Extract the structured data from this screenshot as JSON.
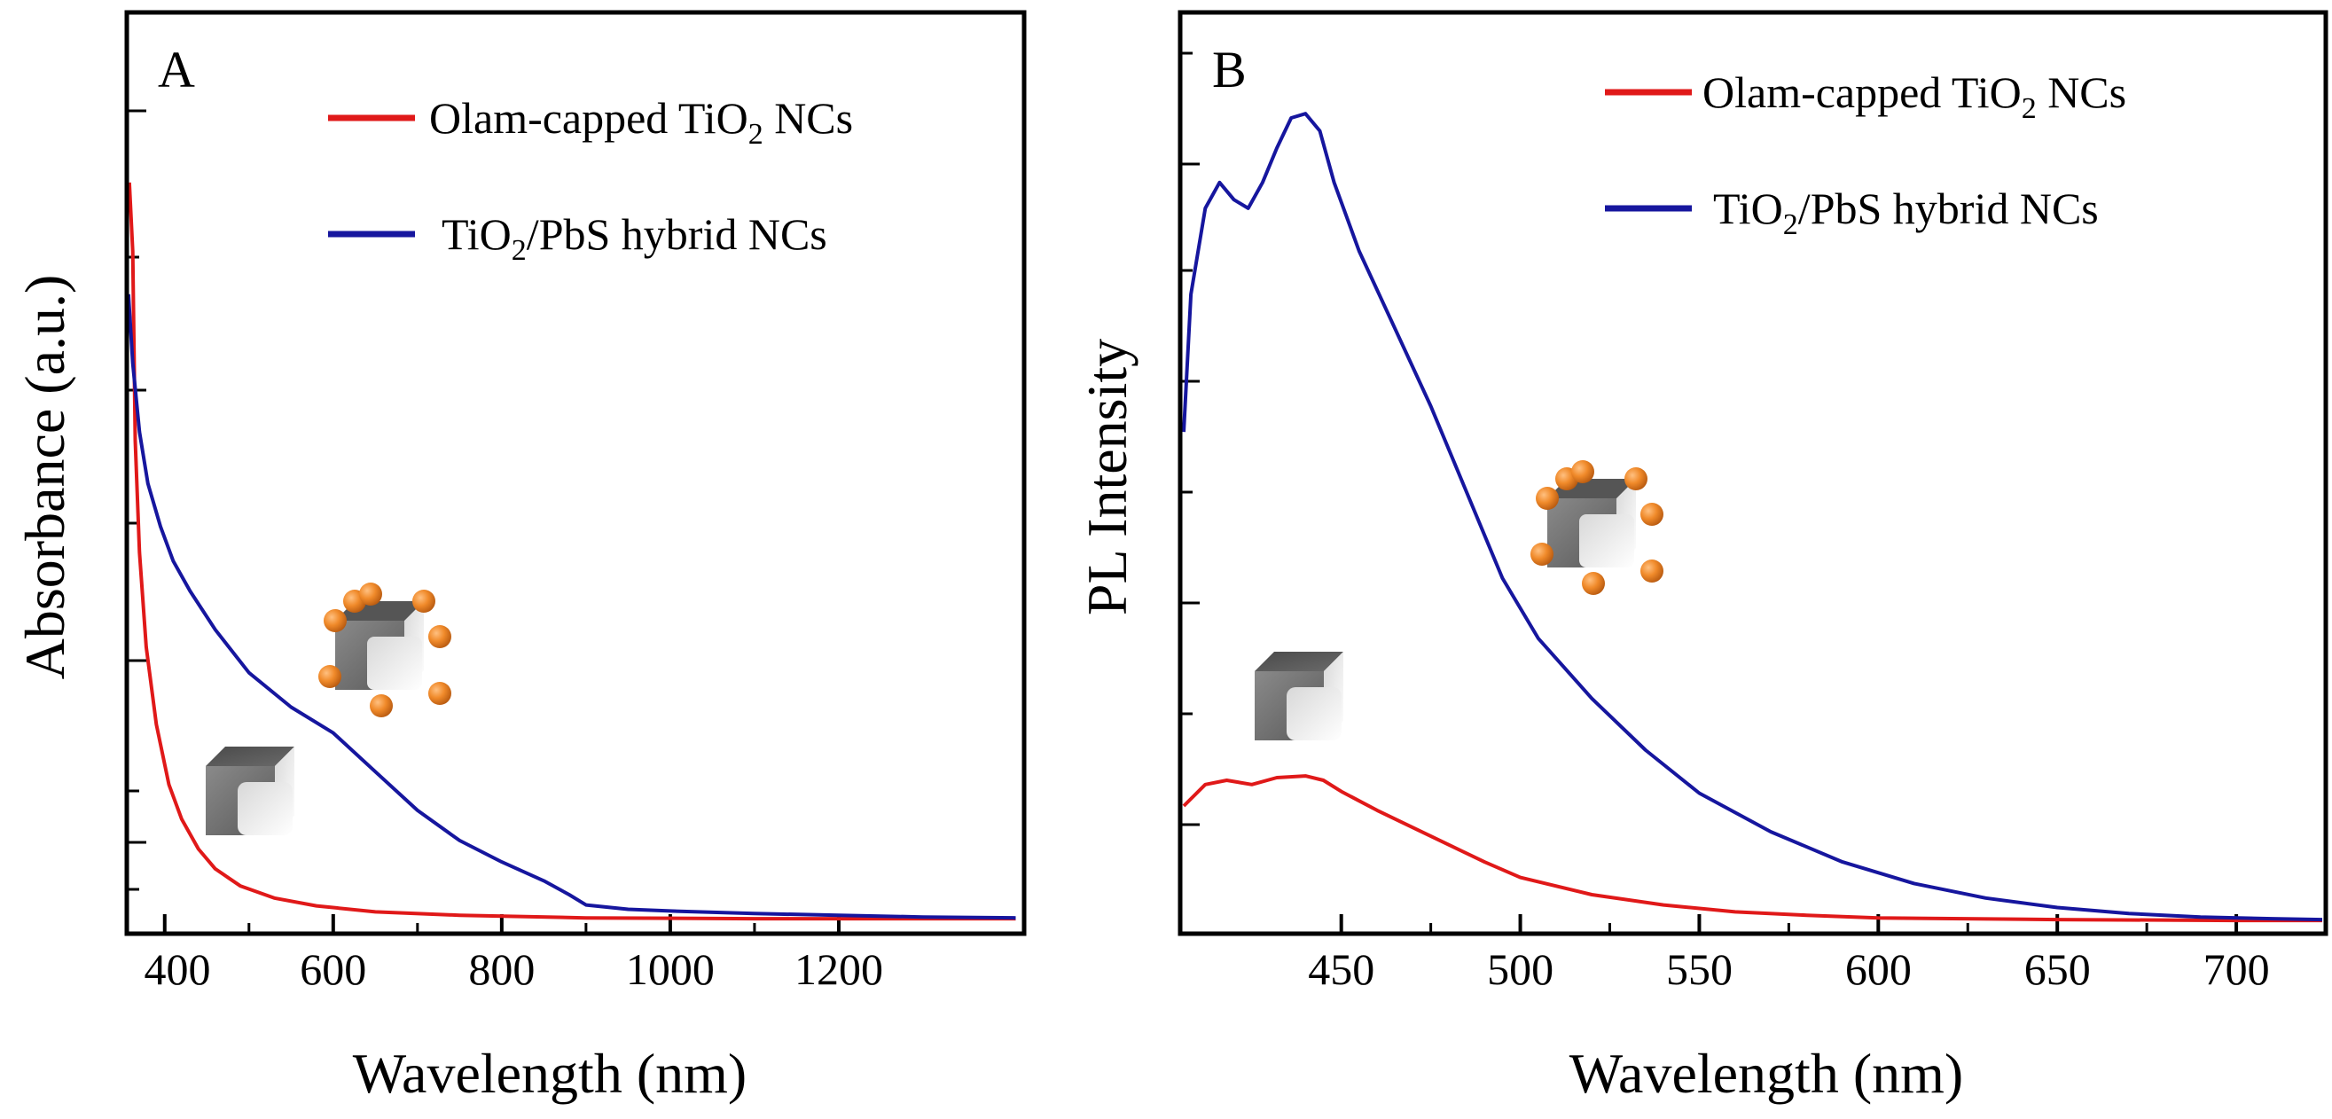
{
  "chart_data": [
    {
      "panel": "A",
      "type": "line",
      "xlabel": "Wavelength (nm)",
      "ylabel": "Absorbance (a.u.)",
      "xlim": [
        355,
        1420
      ],
      "ylim": [
        0,
        1.0
      ],
      "xticks": [
        400,
        600,
        800,
        1000,
        1200
      ],
      "xtick_labels": [
        "400",
        "600",
        "800",
        "1000",
        "1200"
      ],
      "show_ytick_labels": false,
      "series": [
        {
          "name": "Olam-capped TiO2 NCs",
          "label_main": "Olam-capped TiO",
          "label_sub": "2",
          "label_tail": " NCs",
          "color": "#e01919",
          "points": [
            [
              358,
              0.86
            ],
            [
              362,
              0.78
            ],
            [
              365,
              0.56
            ],
            [
              370,
              0.43
            ],
            [
              378,
              0.32
            ],
            [
              390,
              0.23
            ],
            [
              405,
              0.16
            ],
            [
              420,
              0.12
            ],
            [
              440,
              0.085
            ],
            [
              460,
              0.062
            ],
            [
              490,
              0.042
            ],
            [
              530,
              0.028
            ],
            [
              580,
              0.019
            ],
            [
              650,
              0.012
            ],
            [
              750,
              0.008
            ],
            [
              900,
              0.005
            ],
            [
              1100,
              0.004
            ],
            [
              1410,
              0.004
            ]
          ]
        },
        {
          "name": "TiO2/PbS hybrid NCs",
          "label_main": "TiO",
          "label_sub": "2",
          "label_tail": "/PbS hybrid NCs",
          "color": "#16169e",
          "points": [
            [
              357,
              0.73
            ],
            [
              362,
              0.65
            ],
            [
              370,
              0.57
            ],
            [
              380,
              0.51
            ],
            [
              395,
              0.46
            ],
            [
              410,
              0.42
            ],
            [
              430,
              0.385
            ],
            [
              460,
              0.34
            ],
            [
              500,
              0.29
            ],
            [
              550,
              0.25
            ],
            [
              600,
              0.22
            ],
            [
              650,
              0.175
            ],
            [
              700,
              0.13
            ],
            [
              750,
              0.095
            ],
            [
              800,
              0.07
            ],
            [
              850,
              0.048
            ],
            [
              880,
              0.032
            ],
            [
              900,
              0.02
            ],
            [
              950,
              0.015
            ],
            [
              1000,
              0.013
            ],
            [
              1100,
              0.01
            ],
            [
              1200,
              0.008
            ],
            [
              1300,
              0.006
            ],
            [
              1410,
              0.005
            ]
          ]
        }
      ]
    },
    {
      "panel": "B",
      "type": "line",
      "xlabel": "Wavelength (nm)",
      "ylabel": "PL Intensity",
      "xlim": [
        405,
        725
      ],
      "ylim": [
        0,
        1.0
      ],
      "xticks": [
        450,
        500,
        550,
        600,
        650,
        700
      ],
      "xtick_labels": [
        "450",
        "500",
        "550",
        "600",
        "650",
        "700"
      ],
      "show_ytick_labels": false,
      "series": [
        {
          "name": "Olam-capped TiO2 NCs",
          "label_main": "Olam-capped TiO",
          "label_sub": "2",
          "label_tail": " NCs",
          "color": "#e01919",
          "points": [
            [
              406,
              0.135
            ],
            [
              412,
              0.16
            ],
            [
              418,
              0.165
            ],
            [
              425,
              0.16
            ],
            [
              432,
              0.168
            ],
            [
              440,
              0.17
            ],
            [
              445,
              0.165
            ],
            [
              450,
              0.152
            ],
            [
              460,
              0.13
            ],
            [
              470,
              0.11
            ],
            [
              480,
              0.09
            ],
            [
              490,
              0.07
            ],
            [
              500,
              0.052
            ],
            [
              520,
              0.032
            ],
            [
              540,
              0.02
            ],
            [
              560,
              0.012
            ],
            [
              580,
              0.008
            ],
            [
              600,
              0.005
            ],
            [
              650,
              0.003
            ],
            [
              700,
              0.002
            ],
            [
              724,
              0.002
            ]
          ]
        },
        {
          "name": "TiO2/PbS hybrid NCs",
          "label_main": "TiO",
          "label_sub": "2",
          "label_tail": "/PbS hybrid NCs",
          "color": "#16169e",
          "points": [
            [
              406,
              0.57
            ],
            [
              408,
              0.73
            ],
            [
              412,
              0.83
            ],
            [
              416,
              0.86
            ],
            [
              420,
              0.84
            ],
            [
              424,
              0.83
            ],
            [
              428,
              0.86
            ],
            [
              432,
              0.9
            ],
            [
              436,
              0.935
            ],
            [
              440,
              0.94
            ],
            [
              444,
              0.92
            ],
            [
              448,
              0.86
            ],
            [
              455,
              0.78
            ],
            [
              465,
              0.69
            ],
            [
              475,
              0.6
            ],
            [
              485,
              0.5
            ],
            [
              495,
              0.4
            ],
            [
              505,
              0.33
            ],
            [
              520,
              0.26
            ],
            [
              535,
              0.2
            ],
            [
              550,
              0.15
            ],
            [
              570,
              0.105
            ],
            [
              590,
              0.07
            ],
            [
              610,
              0.045
            ],
            [
              630,
              0.028
            ],
            [
              650,
              0.017
            ],
            [
              670,
              0.01
            ],
            [
              690,
              0.006
            ],
            [
              710,
              0.004
            ],
            [
              724,
              0.003
            ]
          ]
        }
      ]
    }
  ]
}
